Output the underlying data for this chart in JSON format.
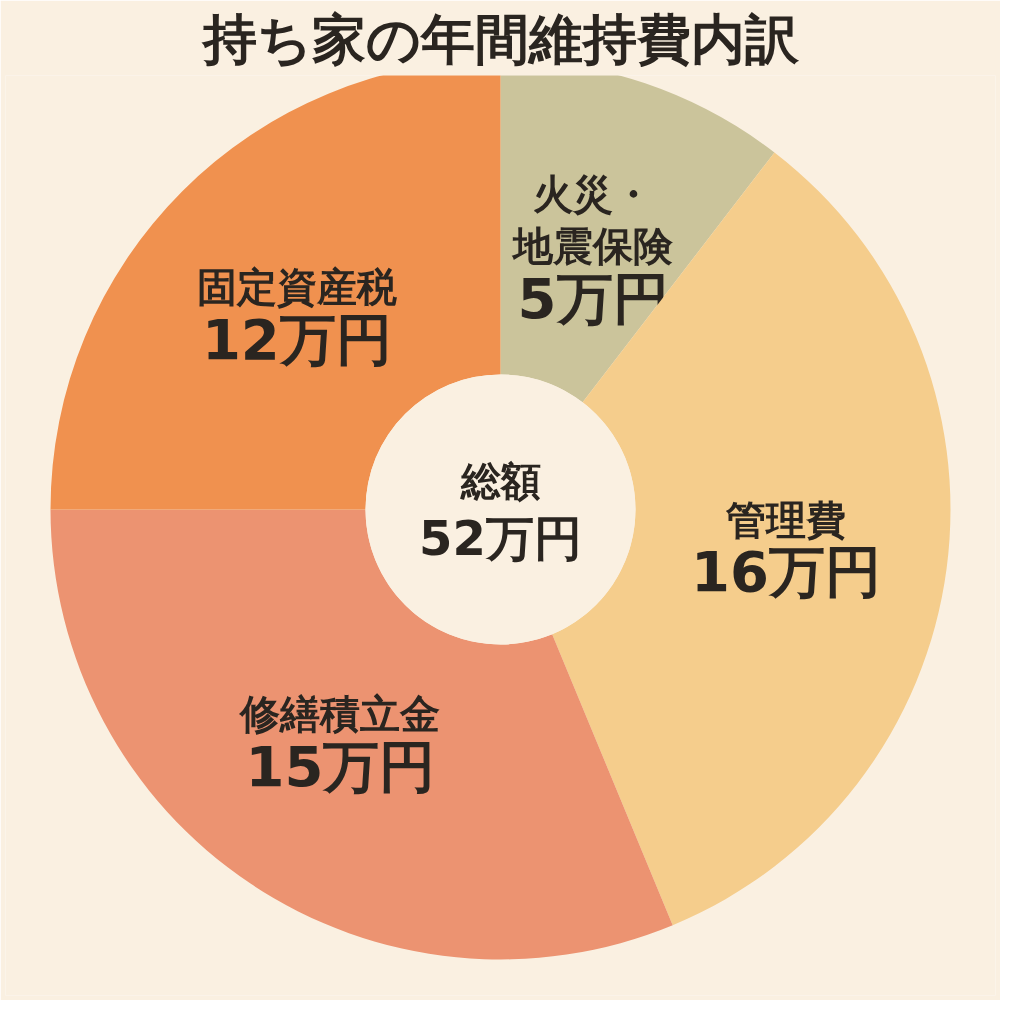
{
  "chart_data": {
    "type": "donut",
    "title": "持ち家の年間維持費内訳",
    "categories": [
      "火災・地震保険",
      "管理費",
      "修繕積立金",
      "固定資産税"
    ],
    "values": [
      5,
      16,
      15,
      12
    ],
    "value_labels": [
      "5万円",
      "16万円",
      "15万円",
      "12万円"
    ],
    "colors": [
      "#cbc49b",
      "#f5cd8c",
      "#ec9371",
      "#f0914f"
    ],
    "annotations": [
      "総額\n52万円"
    ]
  }
}
